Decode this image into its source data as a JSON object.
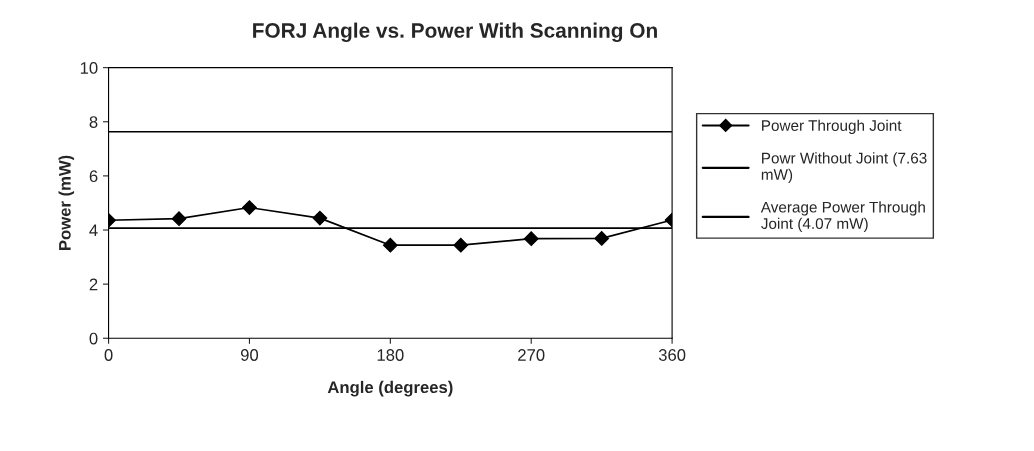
{
  "chart_data": {
    "type": "line",
    "title": "FORJ Angle vs. Power With Scanning On",
    "xlabel": "Angle (degrees)",
    "ylabel": "Power (mW)",
    "xlim": [
      0,
      360
    ],
    "xticks": [
      0,
      90,
      180,
      270,
      360
    ],
    "ylim": [
      0,
      10
    ],
    "yticks": [
      0,
      2,
      4,
      6,
      8,
      10
    ],
    "grid": false,
    "legend": "right",
    "series": [
      {
        "name": "Power Through Joint",
        "color": "#000000",
        "marker": "diamond",
        "x": [
          0,
          45,
          90,
          135,
          180,
          225,
          270,
          315,
          360
        ],
        "values": [
          4.36,
          4.42,
          4.83,
          4.44,
          3.44,
          3.44,
          3.68,
          3.69,
          4.37
        ]
      },
      {
        "name": "Powr Without Joint (7.63 mW)",
        "color": "#000000",
        "marker": "none",
        "x": [
          0,
          360
        ],
        "values": [
          7.63,
          7.63
        ]
      },
      {
        "name": "Average Power Through Joint (4.07 mW)",
        "color": "#000000",
        "marker": "none",
        "x": [
          0,
          360
        ],
        "values": [
          4.07,
          4.07
        ]
      }
    ]
  }
}
